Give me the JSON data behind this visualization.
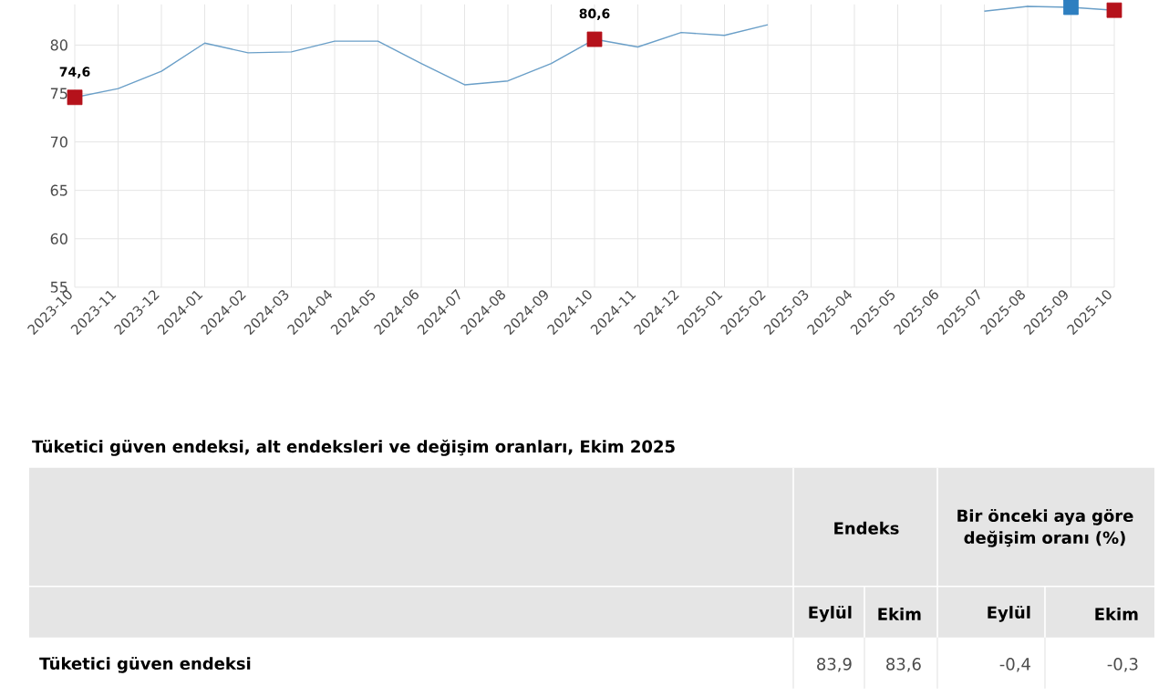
{
  "chart_data": {
    "type": "line",
    "categories": [
      "2023-10",
      "2023-11",
      "2023-12",
      "2024-01",
      "2024-02",
      "2024-03",
      "2024-04",
      "2024-05",
      "2024-06",
      "2024-07",
      "2024-08",
      "2024-09",
      "2024-10",
      "2024-11",
      "2024-12",
      "2025-01",
      "2025-02",
      "2025-03",
      "2025-04",
      "2025-05",
      "2025-06",
      "2025-07",
      "2025-08",
      "2025-09",
      "2025-10"
    ],
    "series": [
      {
        "type": "line",
        "color": "#6a9fc8",
        "values": [
          74.6,
          75.5,
          77.3,
          80.2,
          79.2,
          79.3,
          80.4,
          80.4,
          78.1,
          75.9,
          76.3,
          78.1,
          80.6,
          79.8,
          81.3,
          81.0,
          82.1,
          null,
          null,
          null,
          null,
          83.5,
          84.0,
          83.9,
          83.6
        ]
      },
      {
        "type": "scatter",
        "marker": "square",
        "color": "#b5121b",
        "values": [
          74.6,
          null,
          null,
          null,
          null,
          null,
          null,
          null,
          null,
          null,
          null,
          null,
          80.6,
          null,
          null,
          null,
          null,
          null,
          null,
          null,
          null,
          null,
          null,
          null,
          83.6
        ],
        "value_labels": [
          "74,6",
          null,
          null,
          null,
          null,
          null,
          null,
          null,
          null,
          null,
          null,
          null,
          "80,6",
          null,
          null,
          null,
          null,
          null,
          null,
          null,
          null,
          null,
          null,
          null,
          null
        ]
      },
      {
        "type": "scatter",
        "marker": "square",
        "color": "#2e7fc0",
        "values": [
          null,
          null,
          null,
          null,
          null,
          null,
          null,
          null,
          null,
          null,
          null,
          null,
          null,
          null,
          null,
          null,
          null,
          null,
          null,
          null,
          null,
          null,
          null,
          83.9,
          null
        ]
      }
    ],
    "ylim": [
      55,
      84.2
    ],
    "yticks": [
      55,
      60,
      65,
      70,
      75,
      80
    ],
    "grid": true,
    "annotations": [
      "Tüketici güven endeksi, alt endeksleri ve değişim oranları, Ekim 2025",
      "Endeks",
      "Bir önceki aya göre değişim oranı (%)",
      "Eylül",
      "Ekim",
      "Eylül",
      "Ekim",
      "Tüketici güven endeksi",
      "83,9",
      "83,6",
      "-0,4",
      "-0,3"
    ]
  }
}
